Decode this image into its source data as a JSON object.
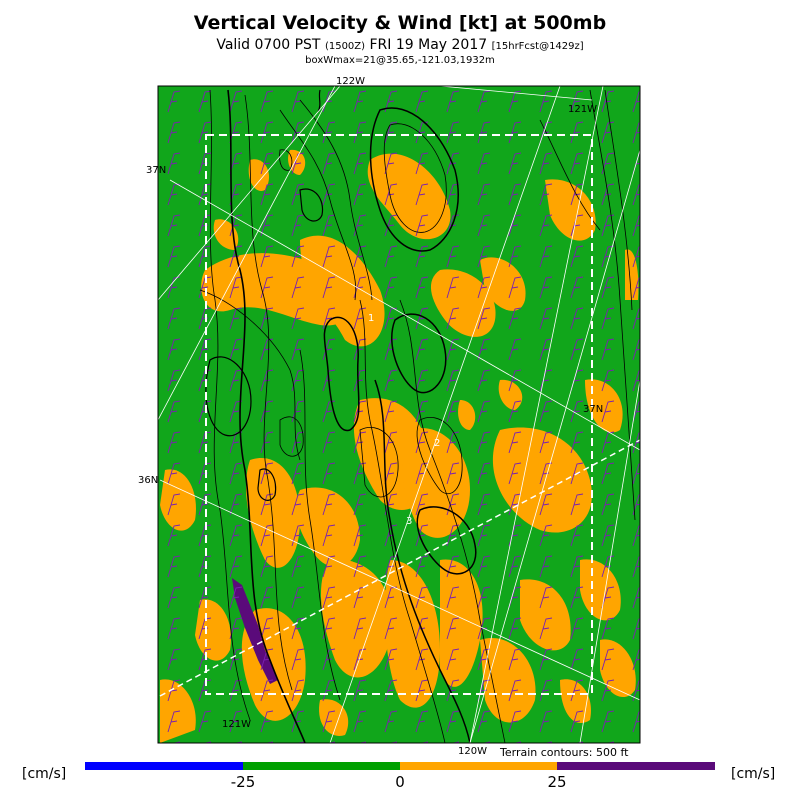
{
  "title": "Vertical Velocity & Wind [kt] at 500mb",
  "subtitle_main": "Valid 0700 PST",
  "subtitle_utc": "(1500Z)",
  "subtitle_date": "FRI 19 May 2017",
  "subtitle_fcst": "[15hrFcst@1429z]",
  "boxwmax": "boxWmax=21@35.65,-121.03,1932m",
  "lon_labels": [
    "122W",
    "121W",
    "121W",
    "120W"
  ],
  "lat_labels": [
    "37N",
    "37N",
    "36N"
  ],
  "max_labels": [
    "1",
    "2",
    "3"
  ],
  "terrain_note": "Terrain contours: 500 ft",
  "colorbar": {
    "unit_left": "[cm/s]",
    "unit_right": "[cm/s]",
    "ticks": [
      "-25",
      "0",
      "25"
    ],
    "colors": [
      "#0000ff",
      "#00a000",
      "#ffa500",
      "#5a0a7a"
    ]
  },
  "colors": {
    "background_field": "#11a61b",
    "positive": "#ffa500",
    "strong_positive": "#5a0a7a",
    "barb": "#7a1fb0"
  }
}
